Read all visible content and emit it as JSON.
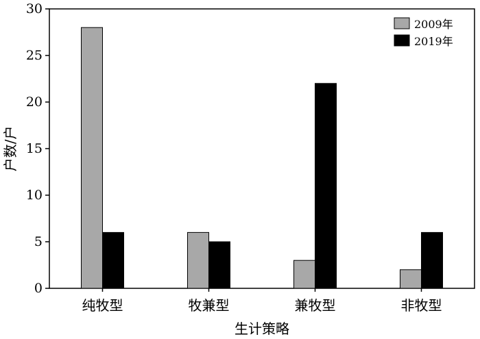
{
  "chart_data": {
    "type": "bar",
    "categories": [
      "纯牧型",
      "牧兼型",
      "兼牧型",
      "非牧型"
    ],
    "series": [
      {
        "name": "2009年",
        "values": [
          28,
          6,
          3,
          2
        ],
        "color": "#a8a8a8"
      },
      {
        "name": "2019年",
        "values": [
          6,
          5,
          22,
          6
        ],
        "color": "#000000"
      }
    ],
    "xlabel": "生计策略",
    "ylabel": "户数/户",
    "ylim": [
      0,
      30
    ],
    "yticks": [
      "0",
      "5",
      "10",
      "15",
      "20",
      "25",
      "30"
    ],
    "grid": false,
    "legend_position": "top-right"
  }
}
